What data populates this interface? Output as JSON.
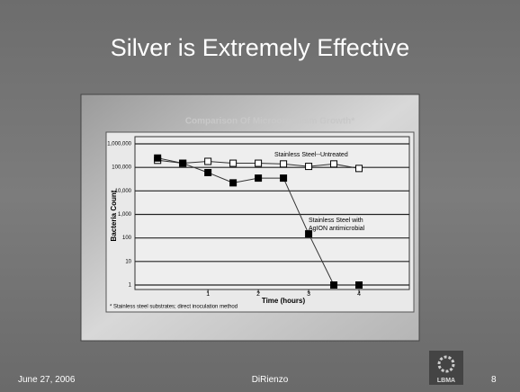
{
  "slide": {
    "title": "Silver is Extremely Effective",
    "footer_date": "June 27, 2006",
    "footer_author": "DiRienzo",
    "page_number": "8",
    "logo_text": "LBMA"
  },
  "chart_data": {
    "type": "line",
    "title": "Comparison Of Microorganism Growth*",
    "y_label": "Bacteria Count",
    "x_label": "Time (hours)",
    "footnote": "* Stainless steel substrates; direct inoculation method",
    "x": [
      0,
      0.5,
      1,
      1.5,
      2,
      2.5,
      3,
      3.5,
      4
    ],
    "series": [
      {
        "name": "Stainless Steel--Untreated",
        "color": "#ffffff",
        "values": [
          200000,
          150000,
          180000,
          150000,
          150000,
          140000,
          110000,
          140000,
          90000
        ]
      },
      {
        "name": "Stainless Steel with AgION antimicrobial",
        "color": "#000000",
        "values": [
          250000,
          150000,
          60000,
          22000,
          35000,
          35000,
          150,
          1,
          1
        ]
      }
    ],
    "log_y": true,
    "ylim": [
      1,
      1000000
    ],
    "yticks": [
      1,
      10,
      100,
      {
        "value": 1000,
        "label": "1,000"
      },
      {
        "value": 10000,
        "label": "10,000"
      },
      {
        "value": 100000,
        "label": "100,000"
      },
      {
        "value": 1000000,
        "label": "1,000,000"
      }
    ],
    "xlim": [
      -0.45,
      5
    ],
    "xticks": [
      1,
      2,
      3,
      4
    ],
    "grid": true
  }
}
